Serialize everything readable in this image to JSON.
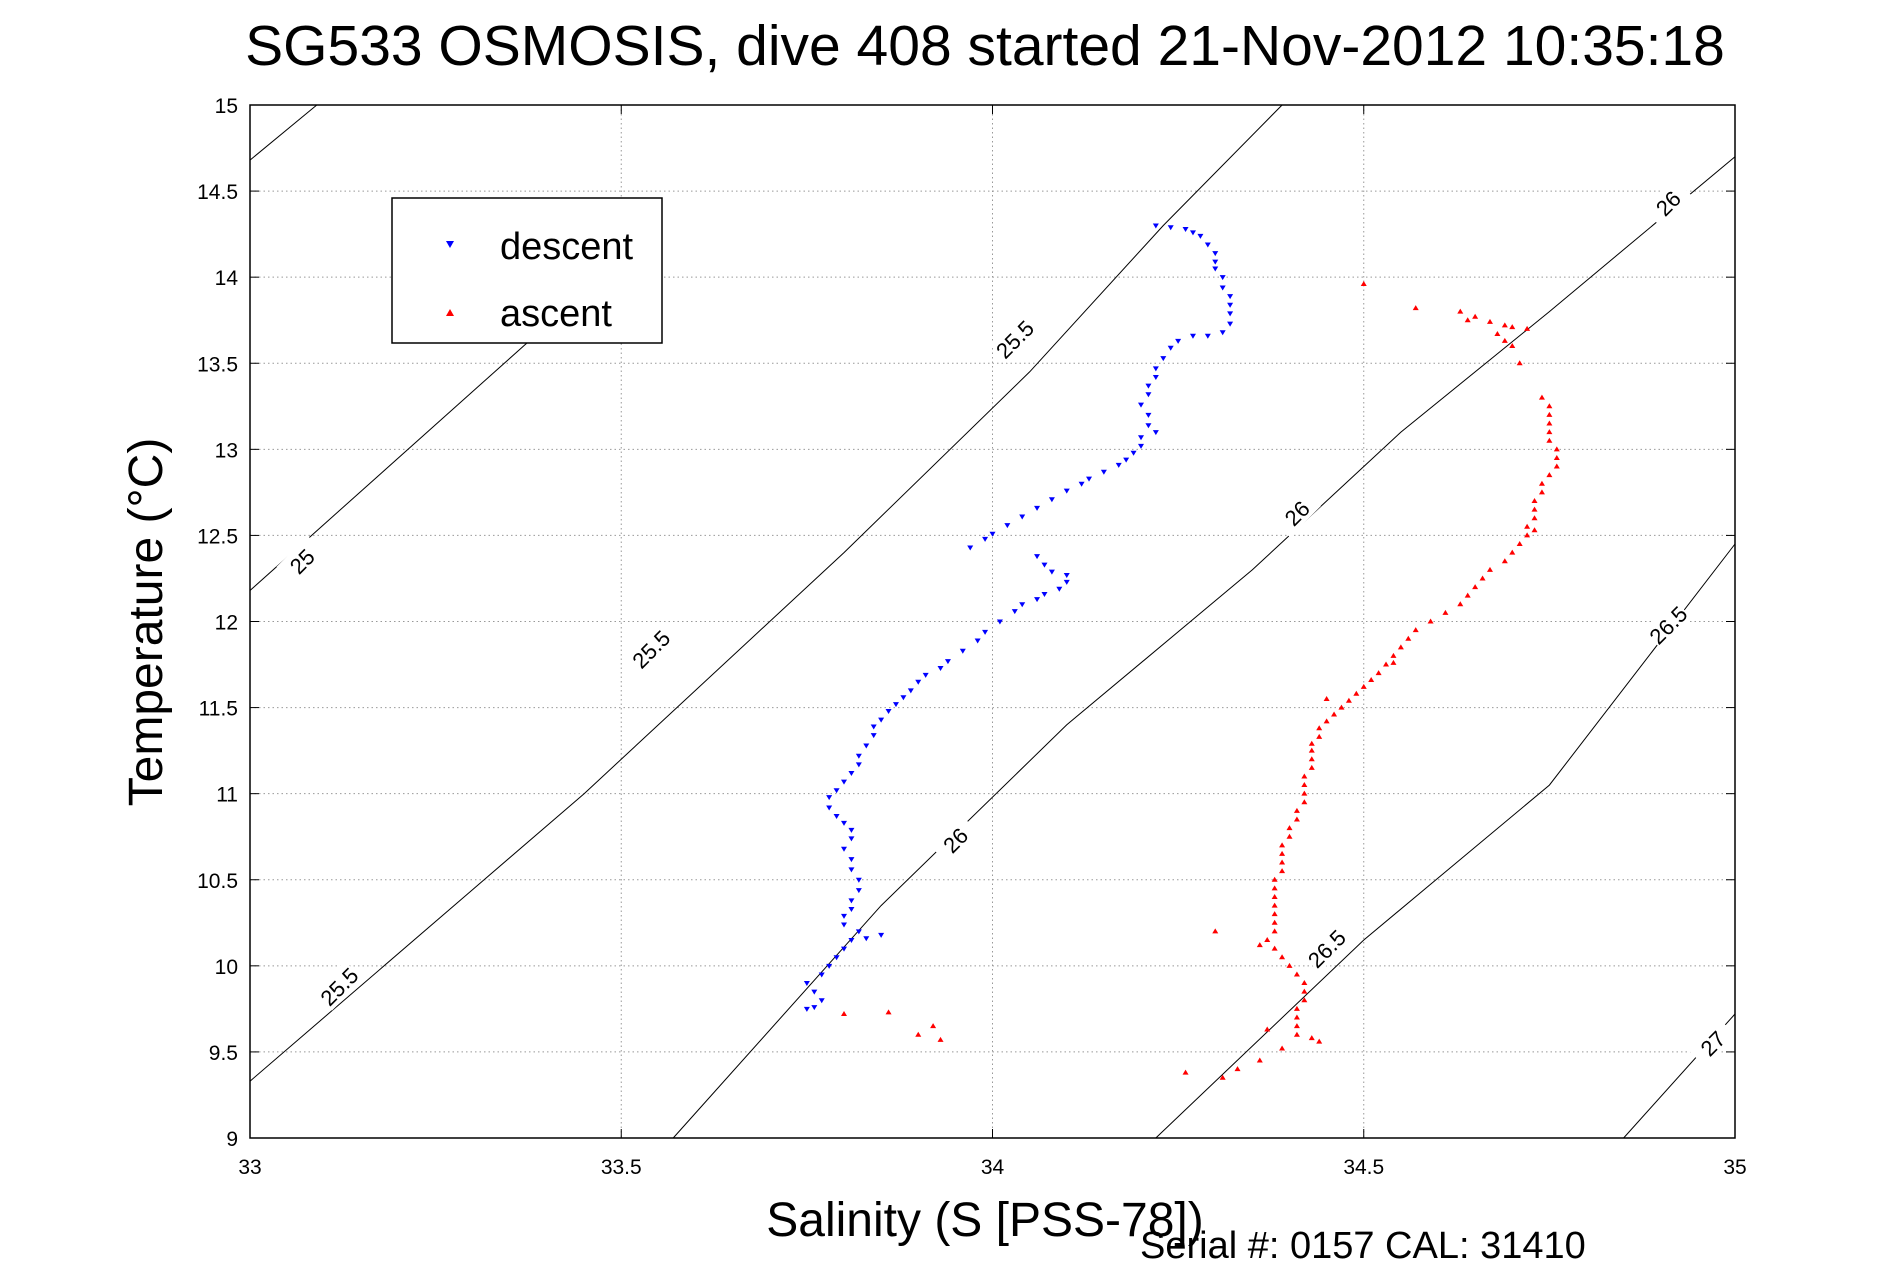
{
  "chart_data": {
    "type": "scatter",
    "title": "SG533 OSMOSIS, dive 408 started 21-Nov-2012 10:35:18",
    "xlabel": "Salinity (S [PSS-78])",
    "ylabel": "Temperature (°C)",
    "xlim": [
      33,
      35
    ],
    "ylim": [
      9,
      15
    ],
    "xticks": [
      "33",
      "33.5",
      "34",
      "34.5",
      "35"
    ],
    "yticks": [
      "9",
      "9.5",
      "10",
      "10.5",
      "11",
      "11.5",
      "12",
      "12.5",
      "13",
      "13.5",
      "14",
      "14.5",
      "15"
    ],
    "grid": true,
    "legend_position": "top-left",
    "footer": "Serial #: 0157  CAL: 31410",
    "contours": [
      {
        "level": "25",
        "points": [
          [
            33.0,
            14.68
          ],
          [
            33.09,
            15.0
          ]
        ],
        "label_pos": [
          33.07,
          12.35
        ]
      },
      {
        "level": "25",
        "points": [
          [
            33.0,
            12.18
          ],
          [
            33.55,
            14.3
          ]
        ],
        "label_pos": [
          33.07,
          12.35
        ]
      },
      {
        "level": "25.5",
        "points": [
          [
            33.0,
            9.33
          ],
          [
            33.45,
            11.0
          ],
          [
            33.8,
            12.4
          ],
          [
            34.05,
            13.45
          ],
          [
            34.23,
            14.3
          ],
          [
            34.39,
            15.0
          ]
        ],
        "label_pos": [
          33.6,
          11.9
        ]
      },
      {
        "level": "26",
        "points": [
          [
            33.57,
            9.0
          ],
          [
            33.85,
            10.35
          ],
          [
            34.1,
            11.4
          ],
          [
            34.35,
            12.3
          ],
          [
            34.55,
            13.1
          ],
          [
            34.75,
            13.8
          ],
          [
            35.0,
            14.7
          ]
        ],
        "label_pos": [
          33.95,
          10.7
        ]
      },
      {
        "level": "26.5",
        "points": [
          [
            34.22,
            9.0
          ],
          [
            34.5,
            10.15
          ],
          [
            34.75,
            11.05
          ],
          [
            35.0,
            12.45
          ]
        ],
        "label_pos": [
          34.45,
          10.05
        ]
      },
      {
        "level": "27",
        "points": [
          [
            34.85,
            9.0
          ],
          [
            35.0,
            9.72
          ]
        ],
        "label_pos": [
          34.97,
          9.55
        ]
      }
    ],
    "contour_labels": [
      {
        "text": "25",
        "x": 33.07,
        "y": 12.35
      },
      {
        "text": "25.5",
        "x": 33.12,
        "y": 9.88
      },
      {
        "text": "25.5",
        "x": 33.54,
        "y": 11.84
      },
      {
        "text": "25.5",
        "x": 34.03,
        "y": 13.64
      },
      {
        "text": "26",
        "x": 33.95,
        "y": 10.73
      },
      {
        "text": "26",
        "x": 34.41,
        "y": 12.63
      },
      {
        "text": "26",
        "x": 34.91,
        "y": 14.43
      },
      {
        "text": "26.5",
        "x": 34.45,
        "y": 10.1
      },
      {
        "text": "26.5",
        "x": 34.91,
        "y": 11.98
      },
      {
        "text": "27",
        "x": 34.97,
        "y": 9.55
      }
    ],
    "series": [
      {
        "name": "descent",
        "color": "#0000ff",
        "marker": "triangle-down",
        "points": [
          [
            34.22,
            14.3
          ],
          [
            34.24,
            14.29
          ],
          [
            34.26,
            14.28
          ],
          [
            34.27,
            14.26
          ],
          [
            34.28,
            14.24
          ],
          [
            34.29,
            14.19
          ],
          [
            34.3,
            14.14
          ],
          [
            34.3,
            14.09
          ],
          [
            34.3,
            14.05
          ],
          [
            34.31,
            14.0
          ],
          [
            34.31,
            13.94
          ],
          [
            34.32,
            13.89
          ],
          [
            34.32,
            13.84
          ],
          [
            34.32,
            13.79
          ],
          [
            34.32,
            13.73
          ],
          [
            34.31,
            13.68
          ],
          [
            34.29,
            13.66
          ],
          [
            34.27,
            13.66
          ],
          [
            34.25,
            13.63
          ],
          [
            34.24,
            13.59
          ],
          [
            34.23,
            13.53
          ],
          [
            34.22,
            13.47
          ],
          [
            34.22,
            13.42
          ],
          [
            34.21,
            13.37
          ],
          [
            34.21,
            13.32
          ],
          [
            34.2,
            13.26
          ],
          [
            34.21,
            13.2
          ],
          [
            34.21,
            13.14
          ],
          [
            34.22,
            13.1
          ],
          [
            34.2,
            13.07
          ],
          [
            34.2,
            13.02
          ],
          [
            34.19,
            12.98
          ],
          [
            34.18,
            12.94
          ],
          [
            34.17,
            12.91
          ],
          [
            34.15,
            12.87
          ],
          [
            34.13,
            12.83
          ],
          [
            34.12,
            12.8
          ],
          [
            34.1,
            12.76
          ],
          [
            34.08,
            12.71
          ],
          [
            34.06,
            12.66
          ],
          [
            34.04,
            12.61
          ],
          [
            34.02,
            12.56
          ],
          [
            34.0,
            12.51
          ],
          [
            33.99,
            12.48
          ],
          [
            33.97,
            12.43
          ],
          [
            34.06,
            12.38
          ],
          [
            34.07,
            12.33
          ],
          [
            34.08,
            12.29
          ],
          [
            34.1,
            12.27
          ],
          [
            34.1,
            12.23
          ],
          [
            34.09,
            12.19
          ],
          [
            34.07,
            12.16
          ],
          [
            34.06,
            12.13
          ],
          [
            34.04,
            12.1
          ],
          [
            34.03,
            12.06
          ],
          [
            34.01,
            12.0
          ],
          [
            33.99,
            11.94
          ],
          [
            33.98,
            11.89
          ],
          [
            33.96,
            11.83
          ],
          [
            33.94,
            11.77
          ],
          [
            33.93,
            11.73
          ],
          [
            33.91,
            11.69
          ],
          [
            33.9,
            11.65
          ],
          [
            33.89,
            11.6
          ],
          [
            33.88,
            11.56
          ],
          [
            33.87,
            11.52
          ],
          [
            33.86,
            11.48
          ],
          [
            33.85,
            11.43
          ],
          [
            33.84,
            11.39
          ],
          [
            33.84,
            11.34
          ],
          [
            33.83,
            11.28
          ],
          [
            33.82,
            11.22
          ],
          [
            33.82,
            11.17
          ],
          [
            33.81,
            11.12
          ],
          [
            33.8,
            11.07
          ],
          [
            33.79,
            11.02
          ],
          [
            33.78,
            10.98
          ],
          [
            33.78,
            10.92
          ],
          [
            33.79,
            10.87
          ],
          [
            33.8,
            10.83
          ],
          [
            33.81,
            10.79
          ],
          [
            33.81,
            10.74
          ],
          [
            33.8,
            10.68
          ],
          [
            33.81,
            10.62
          ],
          [
            33.81,
            10.56
          ],
          [
            33.82,
            10.5
          ],
          [
            33.82,
            10.44
          ],
          [
            33.81,
            10.38
          ],
          [
            33.81,
            10.33
          ],
          [
            33.8,
            10.29
          ],
          [
            33.8,
            10.24
          ],
          [
            33.82,
            10.2
          ],
          [
            33.85,
            10.18
          ],
          [
            33.83,
            10.16
          ],
          [
            33.81,
            10.15
          ],
          [
            33.8,
            10.1
          ],
          [
            33.79,
            10.05
          ],
          [
            33.78,
            10.0
          ],
          [
            33.77,
            9.95
          ],
          [
            33.75,
            9.9
          ],
          [
            33.76,
            9.85
          ],
          [
            33.77,
            9.8
          ],
          [
            33.76,
            9.76
          ],
          [
            33.75,
            9.75
          ]
        ]
      },
      {
        "name": "ascent",
        "color": "#ff0000",
        "marker": "triangle-up",
        "points": [
          [
            34.63,
            13.8
          ],
          [
            34.65,
            13.77
          ],
          [
            34.67,
            13.74
          ],
          [
            34.69,
            13.72
          ],
          [
            34.7,
            13.71
          ],
          [
            34.72,
            13.7
          ],
          [
            34.68,
            13.67
          ],
          [
            34.69,
            13.63
          ],
          [
            34.7,
            13.6
          ],
          [
            34.74,
            13.3
          ],
          [
            34.75,
            13.25
          ],
          [
            34.75,
            13.2
          ],
          [
            34.75,
            13.15
          ],
          [
            34.75,
            13.1
          ],
          [
            34.75,
            13.05
          ],
          [
            34.76,
            13.0
          ],
          [
            34.76,
            12.95
          ],
          [
            34.76,
            12.9
          ],
          [
            34.75,
            12.85
          ],
          [
            34.74,
            12.8
          ],
          [
            34.74,
            12.75
          ],
          [
            34.73,
            12.7
          ],
          [
            34.73,
            12.65
          ],
          [
            34.73,
            12.6
          ],
          [
            34.72,
            12.55
          ],
          [
            34.72,
            12.5
          ],
          [
            34.71,
            12.45
          ],
          [
            34.7,
            12.4
          ],
          [
            34.69,
            12.35
          ],
          [
            34.67,
            12.3
          ],
          [
            34.66,
            12.25
          ],
          [
            34.65,
            12.2
          ],
          [
            34.64,
            12.15
          ],
          [
            34.63,
            12.1
          ],
          [
            34.61,
            12.05
          ],
          [
            34.59,
            12.0
          ],
          [
            34.57,
            11.95
          ],
          [
            34.56,
            11.9
          ],
          [
            34.55,
            11.85
          ],
          [
            34.54,
            11.8
          ],
          [
            34.53,
            11.75
          ],
          [
            34.52,
            11.7
          ],
          [
            34.51,
            11.66
          ],
          [
            34.5,
            11.62
          ],
          [
            34.49,
            11.58
          ],
          [
            34.48,
            11.54
          ],
          [
            34.47,
            11.5
          ],
          [
            34.46,
            11.46
          ],
          [
            34.45,
            11.42
          ],
          [
            34.44,
            11.38
          ],
          [
            34.44,
            11.33
          ],
          [
            34.43,
            11.29
          ],
          [
            34.43,
            11.25
          ],
          [
            34.43,
            11.2
          ],
          [
            34.43,
            11.15
          ],
          [
            34.42,
            11.1
          ],
          [
            34.42,
            11.05
          ],
          [
            34.42,
            11.0
          ],
          [
            34.42,
            10.95
          ],
          [
            34.41,
            10.9
          ],
          [
            34.41,
            10.85
          ],
          [
            34.4,
            10.8
          ],
          [
            34.4,
            10.75
          ],
          [
            34.39,
            10.7
          ],
          [
            34.39,
            10.65
          ],
          [
            34.39,
            10.6
          ],
          [
            34.39,
            10.55
          ],
          [
            34.38,
            10.5
          ],
          [
            34.38,
            10.45
          ],
          [
            34.38,
            10.4
          ],
          [
            34.38,
            10.35
          ],
          [
            34.38,
            10.3
          ],
          [
            34.38,
            10.25
          ],
          [
            34.38,
            10.2
          ],
          [
            34.37,
            10.15
          ],
          [
            34.36,
            10.12
          ],
          [
            34.38,
            10.1
          ],
          [
            34.39,
            10.05
          ],
          [
            34.4,
            10.0
          ],
          [
            34.41,
            9.95
          ],
          [
            34.42,
            9.9
          ],
          [
            34.42,
            9.85
          ],
          [
            34.42,
            9.8
          ],
          [
            34.41,
            9.75
          ],
          [
            34.41,
            9.7
          ],
          [
            34.41,
            9.65
          ],
          [
            34.41,
            9.6
          ],
          [
            34.43,
            9.58
          ],
          [
            34.44,
            9.56
          ],
          [
            34.39,
            9.52
          ],
          [
            34.36,
            9.45
          ],
          [
            34.33,
            9.4
          ],
          [
            34.31,
            9.35
          ]
        ],
        "outliers": [
          [
            34.5,
            13.96
          ],
          [
            34.57,
            13.82
          ],
          [
            34.71,
            13.5
          ],
          [
            34.54,
            11.76
          ],
          [
            34.45,
            11.55
          ],
          [
            34.3,
            10.2
          ],
          [
            34.26,
            9.38
          ],
          [
            33.8,
            9.72
          ],
          [
            33.86,
            9.73
          ],
          [
            33.9,
            9.6
          ],
          [
            33.92,
            9.65
          ],
          [
            34.37,
            9.63
          ],
          [
            33.93,
            9.57
          ],
          [
            34.64,
            13.75
          ],
          [
            34.73,
            12.53
          ]
        ]
      }
    ]
  }
}
